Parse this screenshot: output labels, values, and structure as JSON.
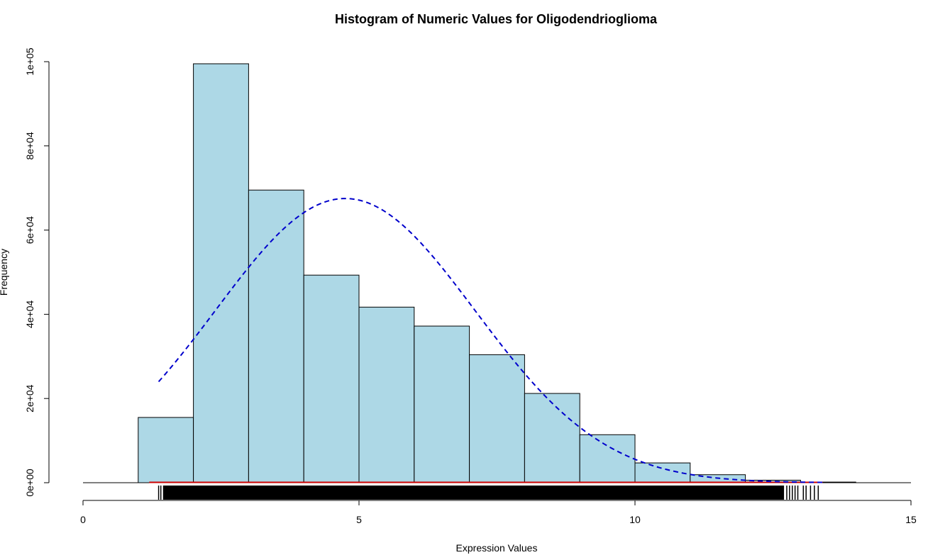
{
  "chart_data": {
    "type": "bar",
    "title": "Histogram of Numeric Values for Oligodendrioglioma",
    "xlabel": "Expression Values",
    "ylabel": "Frequency",
    "xlim": [
      0,
      15
    ],
    "ylim": [
      0,
      100000
    ],
    "x_ticks": [
      0,
      5,
      10,
      15
    ],
    "x_tick_labels": [
      "0",
      "5",
      "10",
      "15"
    ],
    "y_ticks": [
      0,
      20000,
      40000,
      60000,
      80000,
      100000
    ],
    "y_tick_labels": [
      "0e+00",
      "2e+04",
      "4e+04",
      "6e+04",
      "8e+04",
      "1e+05"
    ],
    "bins": [
      {
        "start": 1,
        "end": 2,
        "count": 15500
      },
      {
        "start": 2,
        "end": 3,
        "count": 99500
      },
      {
        "start": 3,
        "end": 4,
        "count": 69500
      },
      {
        "start": 4,
        "end": 5,
        "count": 49300
      },
      {
        "start": 5,
        "end": 6,
        "count": 41700
      },
      {
        "start": 6,
        "end": 7,
        "count": 37200
      },
      {
        "start": 7,
        "end": 8,
        "count": 30400
      },
      {
        "start": 8,
        "end": 9,
        "count": 21200
      },
      {
        "start": 9,
        "end": 10,
        "count": 11400
      },
      {
        "start": 10,
        "end": 11,
        "count": 4700
      },
      {
        "start": 11,
        "end": 12,
        "count": 1900
      },
      {
        "start": 12,
        "end": 13,
        "count": 600
      },
      {
        "start": 13,
        "end": 14,
        "count": 150
      }
    ],
    "normal_curve": {
      "mean": 4.75,
      "sd": 2.35,
      "peak": 67500,
      "x_range": [
        1.37,
        13.4
      ],
      "style": "dashed",
      "color": "#0000cc"
    },
    "density_line": {
      "x_range": [
        1.2,
        13.4
      ],
      "value": 0,
      "color": "#cc0000"
    },
    "rug": {
      "dense_range": [
        1.45,
        12.7
      ],
      "sparse_marks": [
        1.37,
        1.41,
        12.75,
        12.8,
        12.85,
        12.9,
        12.95,
        13.05,
        13.1,
        13.18,
        13.25,
        13.32
      ]
    },
    "colors": {
      "bar_fill": "#add8e6",
      "bar_stroke": "#000000",
      "rug": "#000000"
    },
    "grid": false,
    "legend": "none"
  }
}
